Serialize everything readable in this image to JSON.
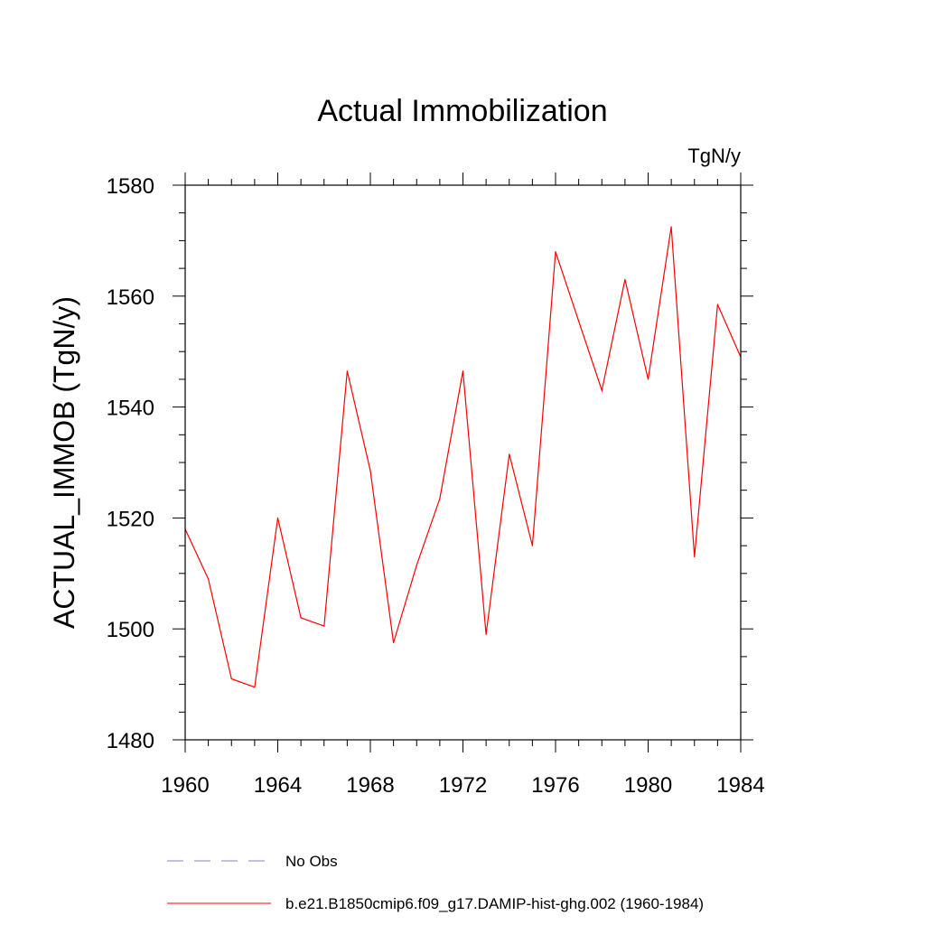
{
  "chart_data": {
    "type": "line",
    "title": "Actual Immobilization",
    "units_label": "TgN/y",
    "ylabel": "ACTUAL_IMMOB  (TgN/y)",
    "xlabel": "",
    "xlim": [
      1960,
      1984
    ],
    "ylim": [
      1480,
      1580
    ],
    "x_ticks": [
      "1960",
      "1964",
      "1968",
      "1972",
      "1976",
      "1980",
      "1984"
    ],
    "y_ticks": [
      "1480",
      "1500",
      "1520",
      "1540",
      "1560",
      "1580"
    ],
    "grid": false,
    "legend_position": "bottom",
    "series": [
      {
        "name": "b.e21.B1850cmip6.f09_g17.DAMIP-hist-ghg.002 (1960-1984)",
        "color": "#ff0000",
        "style": "solid",
        "x": [
          1960,
          1961,
          1962,
          1963,
          1964,
          1965,
          1966,
          1967,
          1968,
          1969,
          1970,
          1971,
          1972,
          1973,
          1974,
          1975,
          1976,
          1977,
          1978,
          1979,
          1980,
          1981,
          1982,
          1983,
          1984
        ],
        "y": [
          1518,
          1509,
          1491,
          1489.5,
          1520,
          1502,
          1500.5,
          1546.5,
          1528.5,
          1497.5,
          1511.5,
          1523.5,
          1546.5,
          1499,
          1531.5,
          1515,
          1568,
          1555.5,
          1543,
          1563,
          1545,
          1572.5,
          1513,
          1558.5,
          1549
        ]
      },
      {
        "name": "No Obs",
        "color": "#8a7fc8",
        "style": "dashed",
        "x": [],
        "y": []
      }
    ]
  }
}
